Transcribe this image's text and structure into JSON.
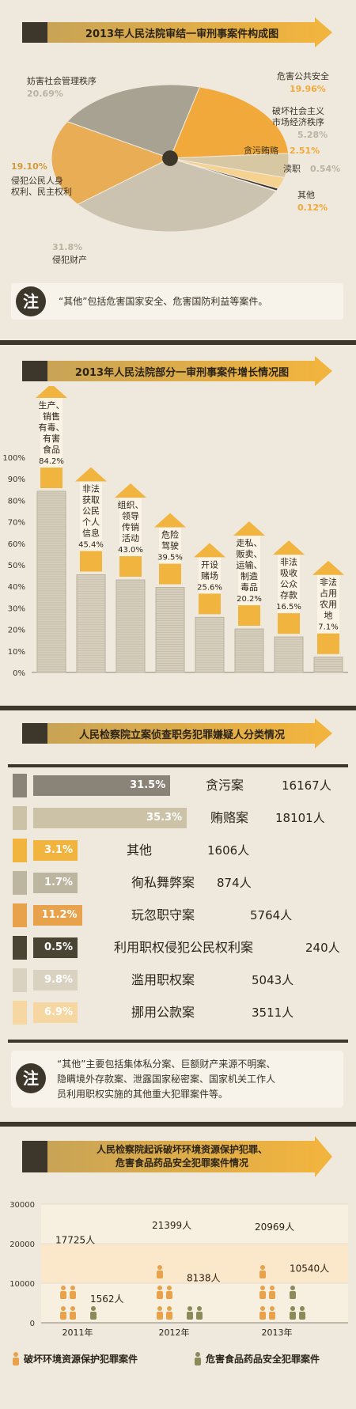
{
  "pie": {
    "title": "2013年人民法院审结一审刑事案件构成图",
    "slices": [
      {
        "name": "危害公共安全",
        "value": 19.96,
        "label": "19.96%",
        "color": "#f0a93a"
      },
      {
        "name": "破坏社会主义市场经济秩序",
        "value": 5.28,
        "label": "5.28%",
        "color": "#d8c7a3"
      },
      {
        "name": "贪污贿赂",
        "value": 2.51,
        "label": "2.51%",
        "color": "#f6d290"
      },
      {
        "name": "渎职",
        "value": 0.54,
        "label": "0.54%",
        "color": "#3d372b"
      },
      {
        "name": "其他",
        "value": 0.12,
        "label": "0.12%",
        "color": "#f0a93a"
      },
      {
        "name": "侵犯财产",
        "value": 31.8,
        "label": "31.8%",
        "color": "#cbc3b0"
      },
      {
        "name": "侵犯公民人身权利、民主权利",
        "value": 19.1,
        "label": "19.10%",
        "color": "#e8ad55"
      },
      {
        "name": "妨害社会管理秩序",
        "value": 20.69,
        "label": "20.69%",
        "color": "#a8a293"
      }
    ],
    "labels": {
      "fanghai": "妨害社会管理秩序",
      "fanghai_pct": "20.69%",
      "weihai": "危害公共安全",
      "weihai_pct": "19.96%",
      "pohuai1": "破坏社会主义",
      "pohuai2": "市场经济秩序",
      "pohuai_pct": "5.28%",
      "tanwu": "贪污贿赂",
      "tanwu_pct": "2.51%",
      "duzhi": "渎职",
      "duzhi_pct": "0.54%",
      "qita": "其他",
      "qita_pct": "0.12%",
      "renshen_pct": "19.10%",
      "renshen1": "侵犯公民人身",
      "renshen2": "权利、民主权利",
      "caichan_pct": "31.8%",
      "caichan": "侵犯财产"
    },
    "note_badge": "注",
    "note": "“其他”包括危害国家安全、危害国防利益等案件。"
  },
  "growth": {
    "title": "2013年人民法院部分一审刑事案件增长情况图",
    "yticks": [
      "100%",
      "90%",
      "80%",
      "70%",
      "60%",
      "50%",
      "40%",
      "30%",
      "20%",
      "10%",
      "0%"
    ],
    "items": [
      {
        "lines": [
          "生产、",
          "销售",
          "有毒、",
          "有害",
          "食品"
        ],
        "value": 84.2,
        "label": "84.2%"
      },
      {
        "lines": [
          "非法",
          "获取",
          "公民",
          "个人",
          "信息"
        ],
        "value": 45.4,
        "label": "45.4%"
      },
      {
        "lines": [
          "组织、",
          "领导",
          "传销",
          "活动"
        ],
        "value": 43.0,
        "label": "43.0%"
      },
      {
        "lines": [
          "危险",
          "驾驶"
        ],
        "value": 39.5,
        "label": "39.5%"
      },
      {
        "lines": [
          "开设",
          "赌场"
        ],
        "value": 25.6,
        "label": "25.6%"
      },
      {
        "lines": [
          "走私、",
          "贩卖、",
          "运输、",
          "制造",
          "毒品"
        ],
        "value": 20.2,
        "label": "20.2%"
      },
      {
        "lines": [
          "非法",
          "吸收",
          "公众",
          "存款"
        ],
        "value": 16.5,
        "label": "16.5%"
      },
      {
        "lines": [
          "非法",
          "占用",
          "农用",
          "地"
        ],
        "value": 7.1,
        "label": "7.1%"
      }
    ]
  },
  "procuratorate": {
    "title": "人民检察院立案侦查职务犯罪嫌疑人分类情况",
    "rows": [
      {
        "pct": "31.5%",
        "value": 31.5,
        "name": "贪污案",
        "count": "16167人",
        "color": "#8a8478"
      },
      {
        "pct": "35.3%",
        "value": 35.3,
        "name": "贿赂案",
        "count": "18101人",
        "color": "#cbc2a8"
      },
      {
        "pct": "3.1%",
        "value": 3.1,
        "name": "其他",
        "count": "1606人",
        "color": "#f1b43e"
      },
      {
        "pct": "1.7%",
        "value": 1.7,
        "name": "徇私舞弊案",
        "count": "874人",
        "color": "#bcb59f"
      },
      {
        "pct": "11.2%",
        "value": 11.2,
        "name": "玩忽职守案",
        "count": "5764人",
        "color": "#e9a24c"
      },
      {
        "pct": "0.5%",
        "value": 0.5,
        "name": "利用职权侵犯公民权利案",
        "count": "240人",
        "color": "#4a4434"
      },
      {
        "pct": "9.8%",
        "value": 9.8,
        "name": "滥用职权案",
        "count": "5043人",
        "color": "#d9d2c0"
      },
      {
        "pct": "6.9%",
        "value": 6.9,
        "name": "挪用公款案",
        "count": "3511人",
        "color": "#f6d7a1"
      }
    ],
    "note_badge": "注",
    "note_lines": [
      "“其他”主要包括集体私分案、巨额财产来源不明案、",
      "隐瞒境外存款案、泄露国家秘密案、国家机关工作人",
      "员利用职权实施的其他重大犯罪案件等。"
    ]
  },
  "prosecution": {
    "title_line1": "人民检察院起诉破坏环境资源保护犯罪、",
    "title_line2": "危害食品药品安全犯罪案件情况",
    "yticks": [
      "30000",
      "20000",
      "10000",
      "0"
    ],
    "years": [
      "2011年",
      "2012年",
      "2013年"
    ],
    "env": {
      "name": "破坏环境资源保护犯罪案件",
      "values": [
        17725,
        21399,
        20969
      ],
      "labels": [
        "17725人",
        "21399人",
        "20969人"
      ],
      "color": "#e9a24c"
    },
    "food": {
      "name": "危害食品药品安全犯罪案件",
      "values": [
        1562,
        8138,
        10540
      ],
      "labels": [
        "1562人",
        "8138人",
        "10540人"
      ],
      "color": "#8a8a5a"
    }
  }
}
